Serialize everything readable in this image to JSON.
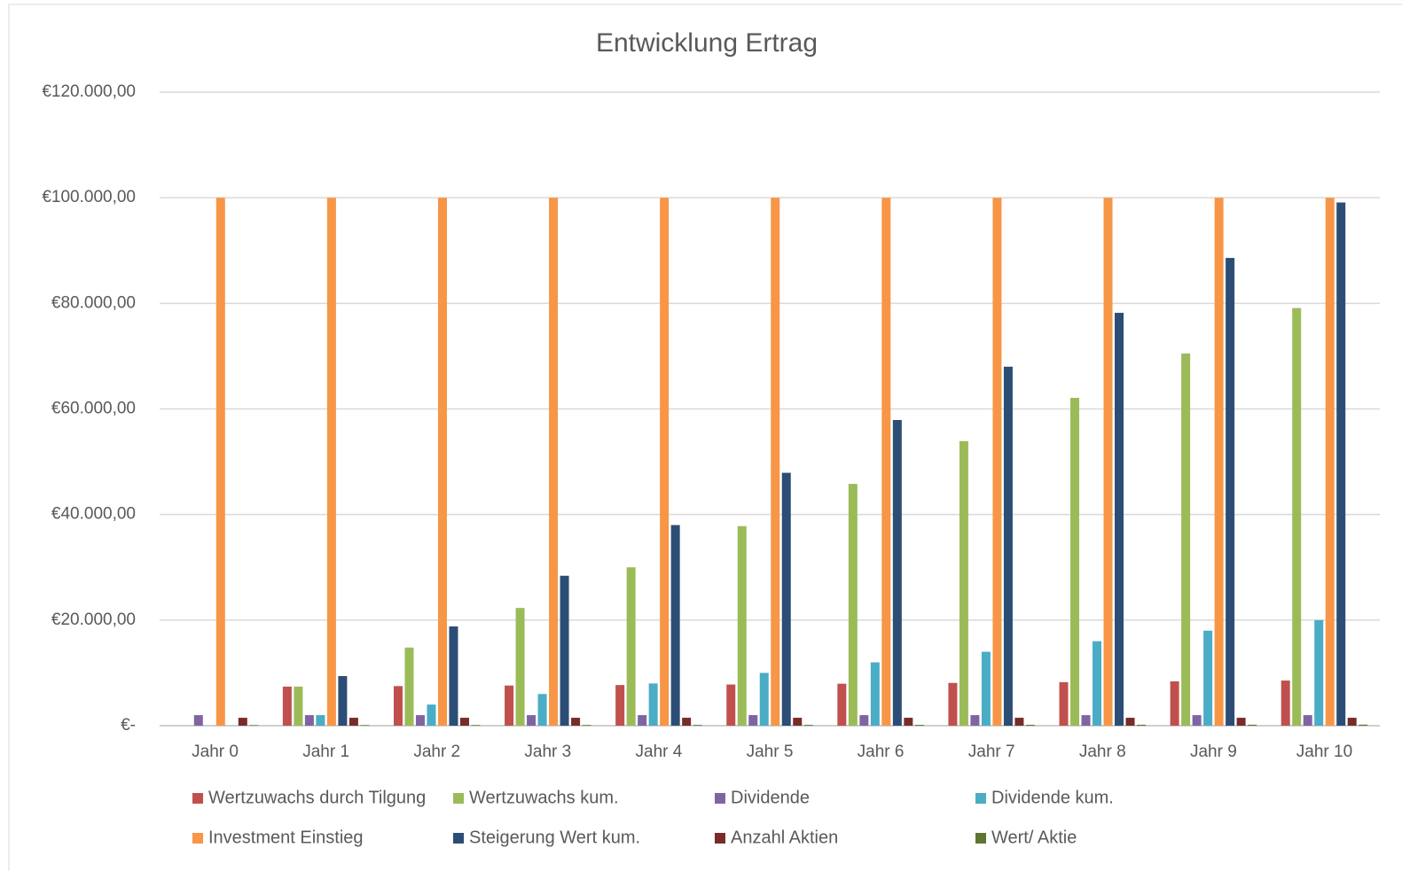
{
  "chart_data": {
    "type": "bar",
    "title": "Entwicklung Ertrag",
    "categories": [
      "Jahr 0",
      "Jahr 1",
      "Jahr 2",
      "Jahr 3",
      "Jahr 4",
      "Jahr 5",
      "Jahr 6",
      "Jahr 7",
      "Jahr 8",
      "Jahr 9",
      "Jahr 10"
    ],
    "series": [
      {
        "name": "Wertzuwachs durch Tilgung",
        "color": "#c0504d",
        "values": [
          0,
          7400,
          7500,
          7600,
          7700,
          7800,
          7950,
          8100,
          8250,
          8400,
          8550
        ]
      },
      {
        "name": "Wertzuwachs kum.",
        "color": "#9bbb59",
        "values": [
          0,
          7400,
          14800,
          22300,
          30000,
          37800,
          45800,
          53900,
          62100,
          70500,
          79100
        ]
      },
      {
        "name": "Dividende",
        "color": "#8064a2",
        "values": [
          2000,
          2000,
          2000,
          2000,
          2000,
          2000,
          2000,
          2000,
          2000,
          2000,
          2000
        ]
      },
      {
        "name": "Dividende kum.",
        "color": "#4bacc6",
        "values": [
          0,
          2000,
          4000,
          6000,
          8000,
          10000,
          12000,
          14000,
          16000,
          18000,
          20000
        ]
      },
      {
        "name": "Investment Einstieg",
        "color": "#f79646",
        "values": [
          100000,
          100000,
          100000,
          100000,
          100000,
          100000,
          100000,
          100000,
          100000,
          100000,
          100000
        ]
      },
      {
        "name": "Steigerung Wert kum.",
        "color": "#2c4d75",
        "values": [
          0,
          9400,
          18800,
          28400,
          38000,
          47900,
          57900,
          68000,
          78200,
          88600,
          99100
        ]
      },
      {
        "name": "Anzahl Aktien",
        "color": "#772c2a",
        "values": [
          1500,
          1500,
          1500,
          1500,
          1500,
          1500,
          1500,
          1500,
          1500,
          1500,
          1500
        ]
      },
      {
        "name": "Wert/ Aktie",
        "color": "#5f7530",
        "values": [
          100,
          110,
          120,
          130,
          140,
          150,
          160,
          170,
          180,
          190,
          200
        ]
      }
    ],
    "ylim": [
      0,
      120000
    ],
    "yticks": [
      {
        "value": 0,
        "label": "€-"
      },
      {
        "value": 20000,
        "label": "€20.000,00"
      },
      {
        "value": 40000,
        "label": "€40.000,00"
      },
      {
        "value": 60000,
        "label": "€60.000,00"
      },
      {
        "value": 80000,
        "label": "€80.000,00"
      },
      {
        "value": 100000,
        "label": "€100.000,00"
      },
      {
        "value": 120000,
        "label": "€120.000,00"
      }
    ],
    "grid": true,
    "legend": "bottom"
  }
}
